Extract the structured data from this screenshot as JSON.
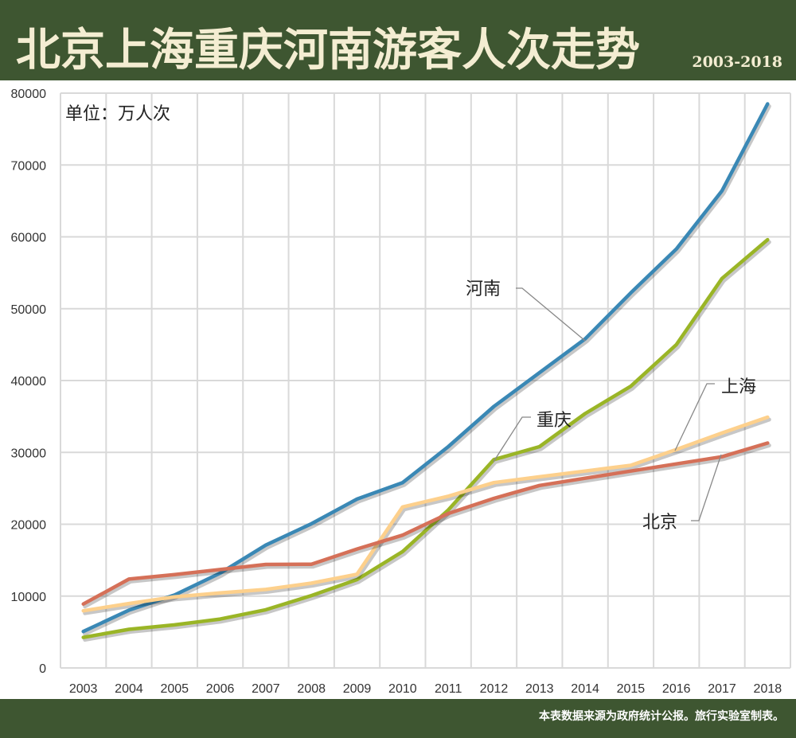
{
  "header": {
    "title": "北京上海重庆河南游客人次走势",
    "subtitle": "2003-2018"
  },
  "footer": {
    "source": "本表数据来源为政府统计公报。旅行实验室制表。"
  },
  "colors": {
    "header_bg": "#3e5631",
    "title": "#f4edd2"
  },
  "chart_data": {
    "type": "line",
    "unit_label": "单位：万人次",
    "categories": [
      "2003",
      "2004",
      "2005",
      "2006",
      "2007",
      "2008",
      "2009",
      "2010",
      "2011",
      "2012",
      "2013",
      "2014",
      "2015",
      "2016",
      "2017",
      "2018"
    ],
    "ylim": [
      0,
      80000
    ],
    "yticks": [
      "0",
      "10000",
      "20000",
      "30000",
      "40000",
      "50000",
      "60000",
      "70000",
      "80000"
    ],
    "grid": true,
    "series": [
      {
        "name": "河南",
        "color": "#3a88b5",
        "values": [
          5070,
          8040,
          10150,
          13200,
          17100,
          20070,
          23500,
          25800,
          30800,
          36400,
          41100,
          45800,
          52200,
          58300,
          66400,
          78500
        ]
      },
      {
        "name": "重庆",
        "color": "#9ab526",
        "values": [
          4260,
          5370,
          6000,
          6800,
          8100,
          10070,
          12300,
          16200,
          22000,
          29000,
          30800,
          35400,
          39200,
          45000,
          54200,
          59600
        ]
      },
      {
        "name": "上海",
        "color": "#fdd08c",
        "values": [
          7960,
          8960,
          9890,
          10440,
          10930,
          11800,
          13040,
          22400,
          23900,
          25800,
          26600,
          27400,
          28200,
          30400,
          32700,
          34900
        ]
      },
      {
        "name": "北京",
        "color": "#d57058",
        "values": [
          8900,
          12370,
          13000,
          13700,
          14400,
          14440,
          16550,
          18480,
          21500,
          23600,
          25400,
          26400,
          27400,
          28400,
          29400,
          31300
        ]
      }
    ]
  }
}
